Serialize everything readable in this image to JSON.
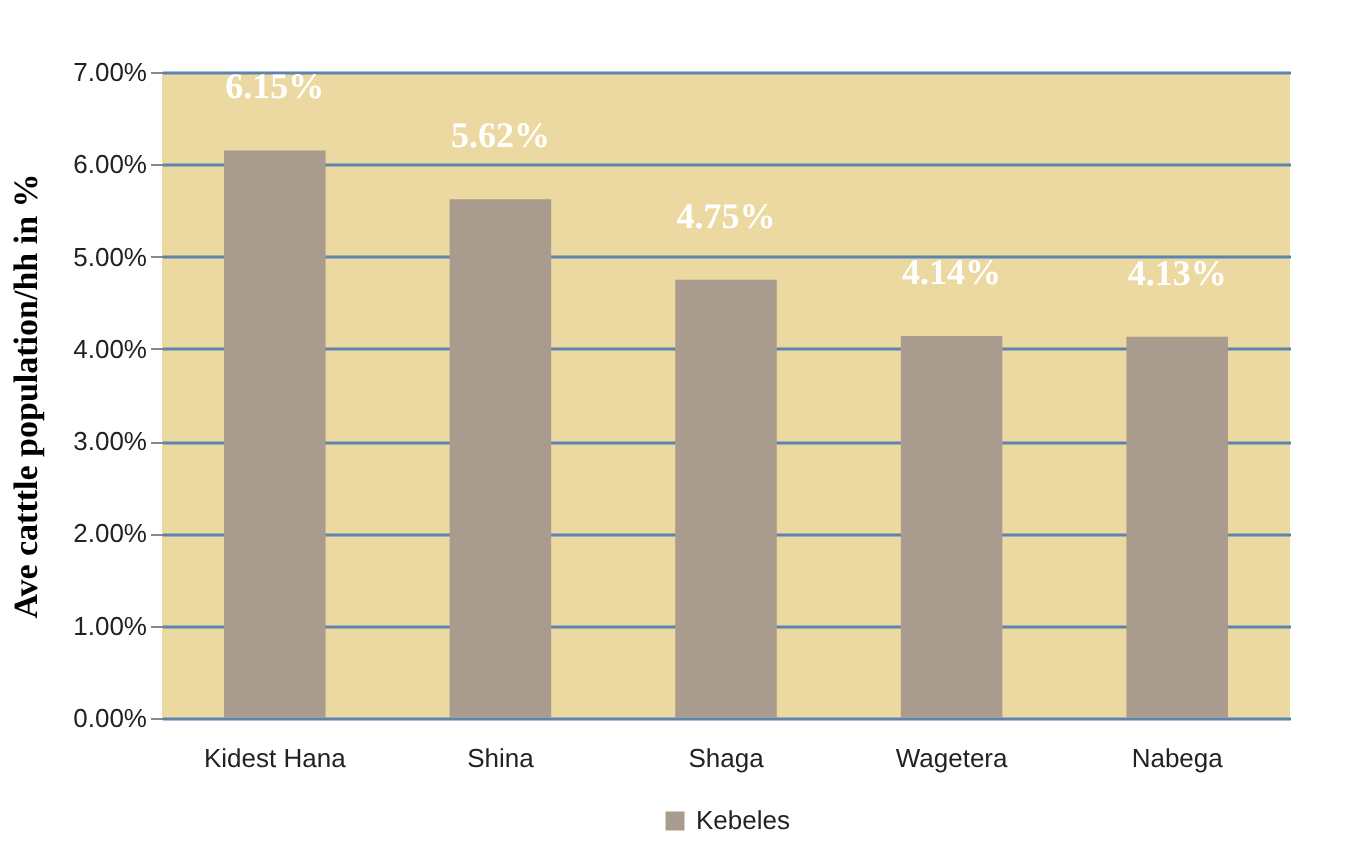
{
  "chart_data": {
    "type": "bar",
    "categories": [
      "Kidest Hana",
      "Shina",
      "Shaga",
      "Wagetera",
      "Nabega"
    ],
    "series": [
      {
        "name": "Kebeles",
        "color": "#a99b8d",
        "values": [
          6.15,
          5.62,
          4.75,
          4.14,
          4.13
        ],
        "value_labels": [
          "6.15%",
          "5.62%",
          "4.75%",
          "4.14%",
          "4.13%"
        ]
      }
    ],
    "ylabel": "Ave catttle population/hh in %",
    "ylim": [
      0,
      7
    ],
    "yticks": [
      {
        "value": 0,
        "label": "0.00%"
      },
      {
        "value": 1,
        "label": "1.00%"
      },
      {
        "value": 2,
        "label": "2.00%"
      },
      {
        "value": 3,
        "label": "3.00%"
      },
      {
        "value": 4,
        "label": "4.00%"
      },
      {
        "value": 5,
        "label": "5.00%"
      },
      {
        "value": 6,
        "label": "6.00%"
      },
      {
        "value": 7,
        "label": "7.00%"
      }
    ],
    "grid": "y",
    "legend": "bottom"
  }
}
